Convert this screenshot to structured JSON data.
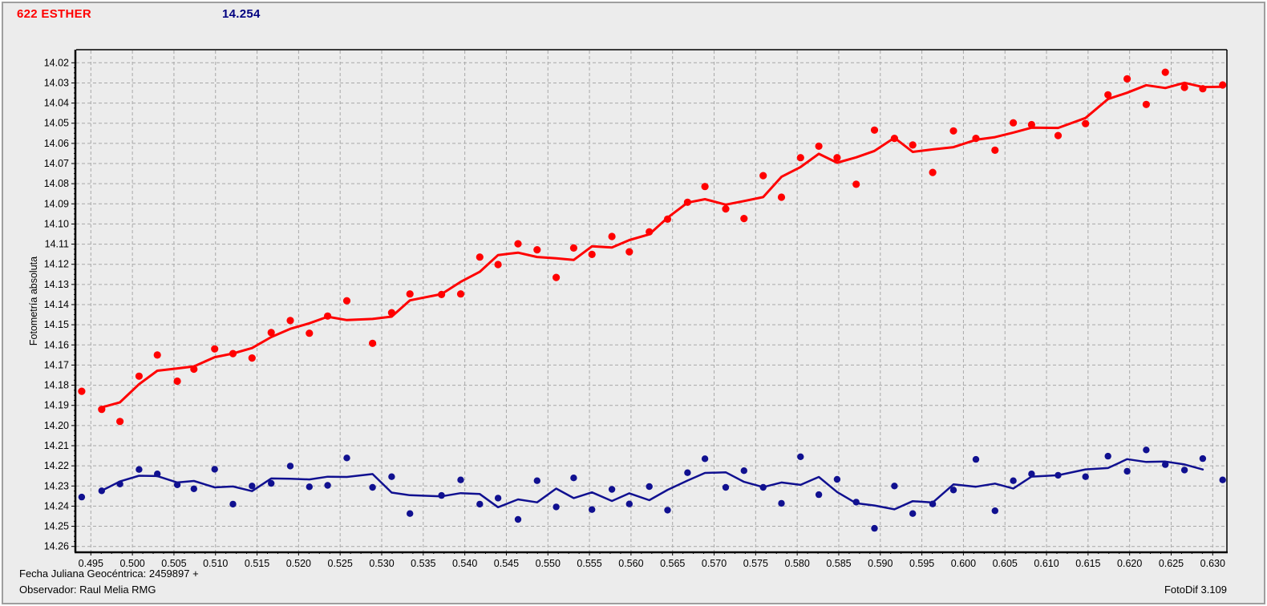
{
  "window": {
    "object_title": "622 ESTHER",
    "reference_value": "14.254"
  },
  "footer": {
    "line1": "Fecha Juliana Geocéntrica: 2459897 +",
    "line2": "Observador: Raul Melia RMG",
    "version": "FotoDif 3.109"
  },
  "colors": {
    "background": "#ECECEC",
    "grid": "#A8A8A8",
    "axis": "#000000",
    "title": "#FF0000",
    "value": "#000080",
    "object_series": "#FF0000",
    "comparison_series": "#101090"
  },
  "chart_data": {
    "type": "scatter",
    "title": "622 ESTHER",
    "ylabel": "Fotometría absoluta",
    "xlabel": "Fecha Juliana Geocéntrica: 2459897 +",
    "grid": true,
    "x_axis": {
      "min": 0.495,
      "max": 0.63,
      "tick_step": 0.005,
      "minor_tick_step": 0.00125,
      "decimals": 3
    },
    "y_axis": {
      "min": 14.02,
      "max": 14.26,
      "tick_step": 0.01,
      "minor_tick_step": 0.0025,
      "decimals": 2,
      "direction": "magnitude-down"
    },
    "x": [
      0.4939,
      0.4963,
      0.4985,
      0.5008,
      0.503,
      0.5054,
      0.5074,
      0.5099,
      0.5121,
      0.5144,
      0.5167,
      0.519,
      0.5213,
      0.5235,
      0.5258,
      0.5289,
      0.5312,
      0.5334,
      0.5372,
      0.5395,
      0.5418,
      0.544,
      0.5464,
      0.5487,
      0.551,
      0.5531,
      0.5553,
      0.5577,
      0.5598,
      0.5622,
      0.5644,
      0.5668,
      0.5689,
      0.5714,
      0.5736,
      0.5759,
      0.5781,
      0.5804,
      0.5826,
      0.5848,
      0.5871,
      0.5893,
      0.5917,
      0.5939,
      0.5963,
      0.5988,
      0.6015,
      0.6038,
      0.606,
      0.6082,
      0.6114,
      0.6147,
      0.6174,
      0.6197,
      0.622,
      0.6243,
      0.6266,
      0.6288,
      0.6312
    ],
    "series": [
      {
        "name": "asteroid-photometry-red",
        "color": "#FF0000",
        "marker_radius": 4.6,
        "line_width": 3,
        "smooth_window": 3,
        "line_start": 1,
        "line_end": 58,
        "values": [
          14.183,
          14.192,
          14.198,
          14.1755,
          14.165,
          14.178,
          14.172,
          14.162,
          14.1643,
          14.1665,
          14.1539,
          14.1479,
          14.1542,
          14.1457,
          14.1381,
          14.1592,
          14.144,
          14.1347,
          14.135,
          14.1347,
          14.1164,
          14.1201,
          14.1098,
          14.1128,
          14.1265,
          14.1119,
          14.1151,
          14.1062,
          14.1138,
          14.1039,
          14.0976,
          14.0892,
          14.0814,
          14.0925,
          14.0973,
          14.076,
          14.0867,
          14.0671,
          14.0614,
          14.0671,
          14.0803,
          14.0534,
          14.0575,
          14.0608,
          14.0744,
          14.0538,
          14.0575,
          14.0634,
          14.0498,
          14.0507,
          14.0561,
          14.0502,
          14.0359,
          14.028,
          14.0407,
          14.0247,
          14.0322,
          14.0329,
          14.031
        ]
      },
      {
        "name": "comparison-blue",
        "color": "#101090",
        "marker_radius": 4.2,
        "line_width": 2.5,
        "smooth_window": 3,
        "line_start": 1,
        "line_end": 57,
        "values": [
          14.2355,
          14.2324,
          14.229,
          14.2218,
          14.224,
          14.2294,
          14.2314,
          14.2217,
          14.239,
          14.23,
          14.2287,
          14.2201,
          14.2304,
          14.2297,
          14.2161,
          14.2307,
          14.2254,
          14.2437,
          14.2347,
          14.227,
          14.239,
          14.236,
          14.2466,
          14.2274,
          14.2404,
          14.226,
          14.2417,
          14.2317,
          14.2389,
          14.2303,
          14.242,
          14.2234,
          14.2165,
          14.2307,
          14.2224,
          14.2307,
          14.2386,
          14.2155,
          14.2343,
          14.2267,
          14.238,
          14.251,
          14.23,
          14.2437,
          14.2389,
          14.232,
          14.2168,
          14.2423,
          14.2274,
          14.224,
          14.2247,
          14.2254,
          14.2152,
          14.2227,
          14.2121,
          14.2194,
          14.2221,
          14.2164,
          14.227
        ]
      }
    ]
  }
}
